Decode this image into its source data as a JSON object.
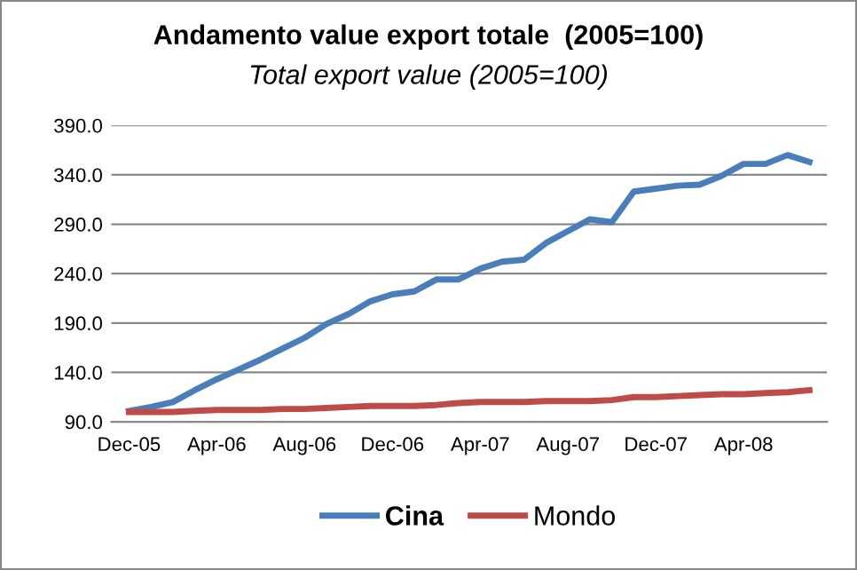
{
  "chart_data": {
    "type": "line",
    "title": "Andamento value export totale  (2005=100)",
    "subtitle": "Total export value (2005=100)",
    "categories": [
      "Dec-05",
      null,
      null,
      null,
      "Apr-06",
      null,
      null,
      null,
      "Aug-06",
      null,
      null,
      null,
      "Dec-06",
      null,
      null,
      null,
      "Apr-07",
      null,
      null,
      null,
      "Aug-07",
      null,
      null,
      null,
      "Dec-07",
      null,
      null,
      null,
      "Apr-08",
      null,
      null,
      null
    ],
    "series": [
      {
        "name": "Cina",
        "color": "#4a7ebb",
        "values": [
          101,
          105,
          110,
          122,
          133,
          143,
          153,
          164,
          175,
          189,
          199,
          212,
          219,
          222,
          234,
          234,
          245,
          252,
          254,
          271,
          283,
          295,
          292,
          323,
          326,
          329,
          330,
          339,
          351,
          351,
          360,
          353
        ]
      },
      {
        "name": "Mondo",
        "color": "#be4b48",
        "values": [
          100,
          100,
          100,
          101,
          102,
          102,
          102,
          103,
          103,
          104,
          105,
          106,
          106,
          106,
          107,
          109,
          110,
          110,
          110,
          111,
          111,
          111,
          112,
          115,
          115,
          116,
          117,
          118,
          118,
          119,
          120,
          122
        ]
      }
    ],
    "ylim": [
      90,
      390
    ],
    "yticks": [
      {
        "value": 90,
        "label": "90.0"
      },
      {
        "value": 140,
        "label": "140.0"
      },
      {
        "value": 190,
        "label": "190.0"
      },
      {
        "value": 240,
        "label": "240.0"
      },
      {
        "value": 290,
        "label": "290.0"
      },
      {
        "value": 340,
        "label": "340.0"
      },
      {
        "value": 390,
        "label": "390.0"
      }
    ],
    "grid": "y",
    "legend": "bottom",
    "marker": "none",
    "line_style": "solid"
  }
}
